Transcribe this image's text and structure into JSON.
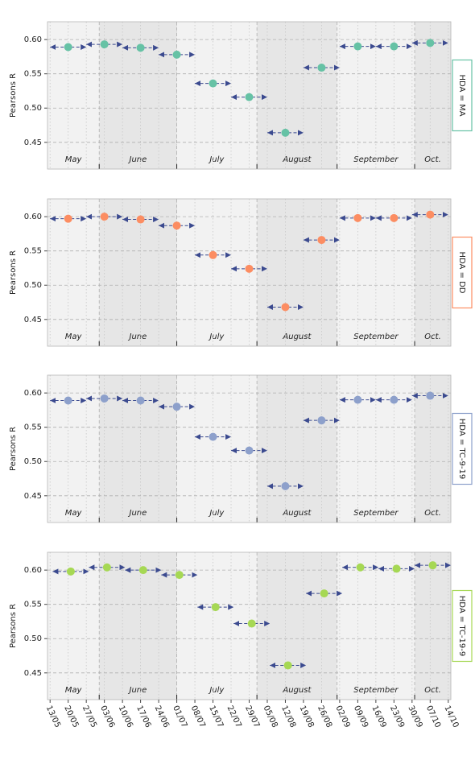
{
  "chart_data": [
    {
      "type": "scatter",
      "facet": "HDA = MA",
      "ylabel": "Pearsons R",
      "color": "#66c2a5",
      "facet_color": "#66c2a5",
      "arrow_color": "#3b4a8f",
      "x": [
        7,
        21,
        35,
        49,
        63,
        77,
        91,
        105,
        119,
        133,
        147
      ],
      "x_start": [
        0,
        14,
        28,
        42,
        56,
        70,
        84,
        98,
        112,
        126,
        140
      ],
      "x_end": [
        14,
        28,
        42,
        56,
        70,
        84,
        98,
        112,
        126,
        140,
        154
      ],
      "values": [
        0.589,
        0.593,
        0.588,
        0.578,
        0.536,
        0.516,
        0.464,
        0.559,
        0.59,
        0.59,
        0.595
      ],
      "xlim": [
        -1,
        155
      ],
      "ylim": [
        0.411,
        0.626
      ],
      "yticks": [
        0.45,
        {
          "value": 0.5,
          "label": "0.50"
        },
        0.55,
        {
          "value": 0.6,
          "label": "0.60"
        }
      ],
      "months": [
        "May",
        "June",
        "July",
        "August",
        "September",
        "Oct."
      ],
      "month_edges": [
        -12,
        19,
        49,
        80,
        111,
        141,
        172
      ],
      "grid": true
    },
    {
      "type": "scatter",
      "facet": "HDA = DD",
      "ylabel": "Pearsons R",
      "color": "#fc8d62",
      "facet_color": "#fc8d62",
      "arrow_color": "#3b4a8f",
      "x": [
        7,
        21,
        35,
        49,
        63,
        77,
        91,
        105,
        119,
        133,
        147
      ],
      "x_start": [
        0,
        14,
        28,
        42,
        56,
        70,
        84,
        98,
        112,
        126,
        140
      ],
      "x_end": [
        14,
        28,
        42,
        56,
        70,
        84,
        98,
        112,
        126,
        140,
        154
      ],
      "values": [
        0.597,
        0.6,
        0.596,
        0.587,
        0.544,
        0.524,
        0.468,
        0.566,
        0.598,
        0.598,
        0.603
      ],
      "xlim": [
        -1,
        155
      ],
      "ylim": [
        0.411,
        0.626
      ],
      "yticks": [
        0.45,
        {
          "value": 0.5,
          "label": "0.50"
        },
        0.55,
        {
          "value": 0.6,
          "label": "0.60"
        }
      ],
      "months": [
        "May",
        "June",
        "July",
        "August",
        "September",
        "Oct."
      ],
      "month_edges": [
        -12,
        19,
        49,
        80,
        111,
        141,
        172
      ],
      "grid": true
    },
    {
      "type": "scatter",
      "facet": "HDA = TC-9-19",
      "ylabel": "Pearsons R",
      "color": "#8da0cb",
      "facet_color": "#8da0cb",
      "arrow_color": "#3b4a8f",
      "x": [
        7,
        21,
        35,
        49,
        63,
        77,
        91,
        105,
        119,
        133,
        147
      ],
      "x_start": [
        0,
        14,
        28,
        42,
        56,
        70,
        84,
        98,
        112,
        126,
        140
      ],
      "x_end": [
        14,
        28,
        42,
        56,
        70,
        84,
        98,
        112,
        126,
        140,
        154
      ],
      "values": [
        0.589,
        0.592,
        0.589,
        0.58,
        0.536,
        0.516,
        0.464,
        0.56,
        0.59,
        0.59,
        0.596
      ],
      "xlim": [
        -1,
        155
      ],
      "ylim": [
        0.411,
        0.626
      ],
      "yticks": [
        0.45,
        {
          "value": 0.5,
          "label": "0.50"
        },
        0.55,
        {
          "value": 0.6,
          "label": "0.60"
        }
      ],
      "months": [
        "May",
        "June",
        "July",
        "August",
        "September",
        "Oct."
      ],
      "month_edges": [
        -12,
        19,
        49,
        80,
        111,
        141,
        172
      ],
      "grid": true
    },
    {
      "type": "scatter",
      "facet": "HDA = TC-19-9",
      "ylabel": "Pearsons R",
      "color": "#a6d854",
      "facet_color": "#a6d854",
      "arrow_color": "#3b4a8f",
      "x": [
        8,
        22,
        36,
        50,
        64,
        78,
        92,
        106,
        120,
        134,
        148
      ],
      "x_start": [
        1,
        15,
        29,
        43,
        57,
        71,
        85,
        99,
        113,
        127,
        141
      ],
      "x_end": [
        15,
        29,
        43,
        57,
        71,
        85,
        99,
        113,
        127,
        141,
        155
      ],
      "values": [
        0.598,
        0.604,
        0.6,
        0.593,
        0.546,
        0.522,
        0.461,
        0.566,
        0.604,
        0.602,
        0.607
      ],
      "xlim": [
        -1,
        155
      ],
      "ylim": [
        0.411,
        0.626
      ],
      "yticks": [
        0.45,
        {
          "value": 0.5,
          "label": "0.50"
        },
        0.55,
        {
          "value": 0.6,
          "label": "0.60"
        }
      ],
      "months": [
        "May",
        "June",
        "July",
        "August",
        "September",
        "Oct."
      ],
      "month_edges": [
        -12,
        19,
        49,
        80,
        111,
        141,
        172
      ],
      "grid": true,
      "xticks": [
        {
          "value": 0,
          "label": "13/05"
        },
        {
          "value": 7,
          "label": "20/05"
        },
        {
          "value": 14,
          "label": "27/05"
        },
        {
          "value": 21,
          "label": "03/06"
        },
        {
          "value": 28,
          "label": "10/06"
        },
        {
          "value": 35,
          "label": "17/06"
        },
        {
          "value": 42,
          "label": "24/06"
        },
        {
          "value": 49,
          "label": "01/07"
        },
        {
          "value": 56,
          "label": "08/07"
        },
        {
          "value": 63,
          "label": "15/07"
        },
        {
          "value": 70,
          "label": "22/07"
        },
        {
          "value": 77,
          "label": "29/07"
        },
        {
          "value": 84,
          "label": "05/08"
        },
        {
          "value": 91,
          "label": "12/08"
        },
        {
          "value": 98,
          "label": "19/08"
        },
        {
          "value": 105,
          "label": "26/08"
        },
        {
          "value": 112,
          "label": "02/09"
        },
        {
          "value": 119,
          "label": "09/09"
        },
        {
          "value": 126,
          "label": "16/09"
        },
        {
          "value": 133,
          "label": "23/09"
        },
        {
          "value": 140,
          "label": "30/09"
        },
        {
          "value": 147,
          "label": "07/10"
        },
        {
          "value": 154,
          "label": "14/10"
        }
      ]
    }
  ]
}
